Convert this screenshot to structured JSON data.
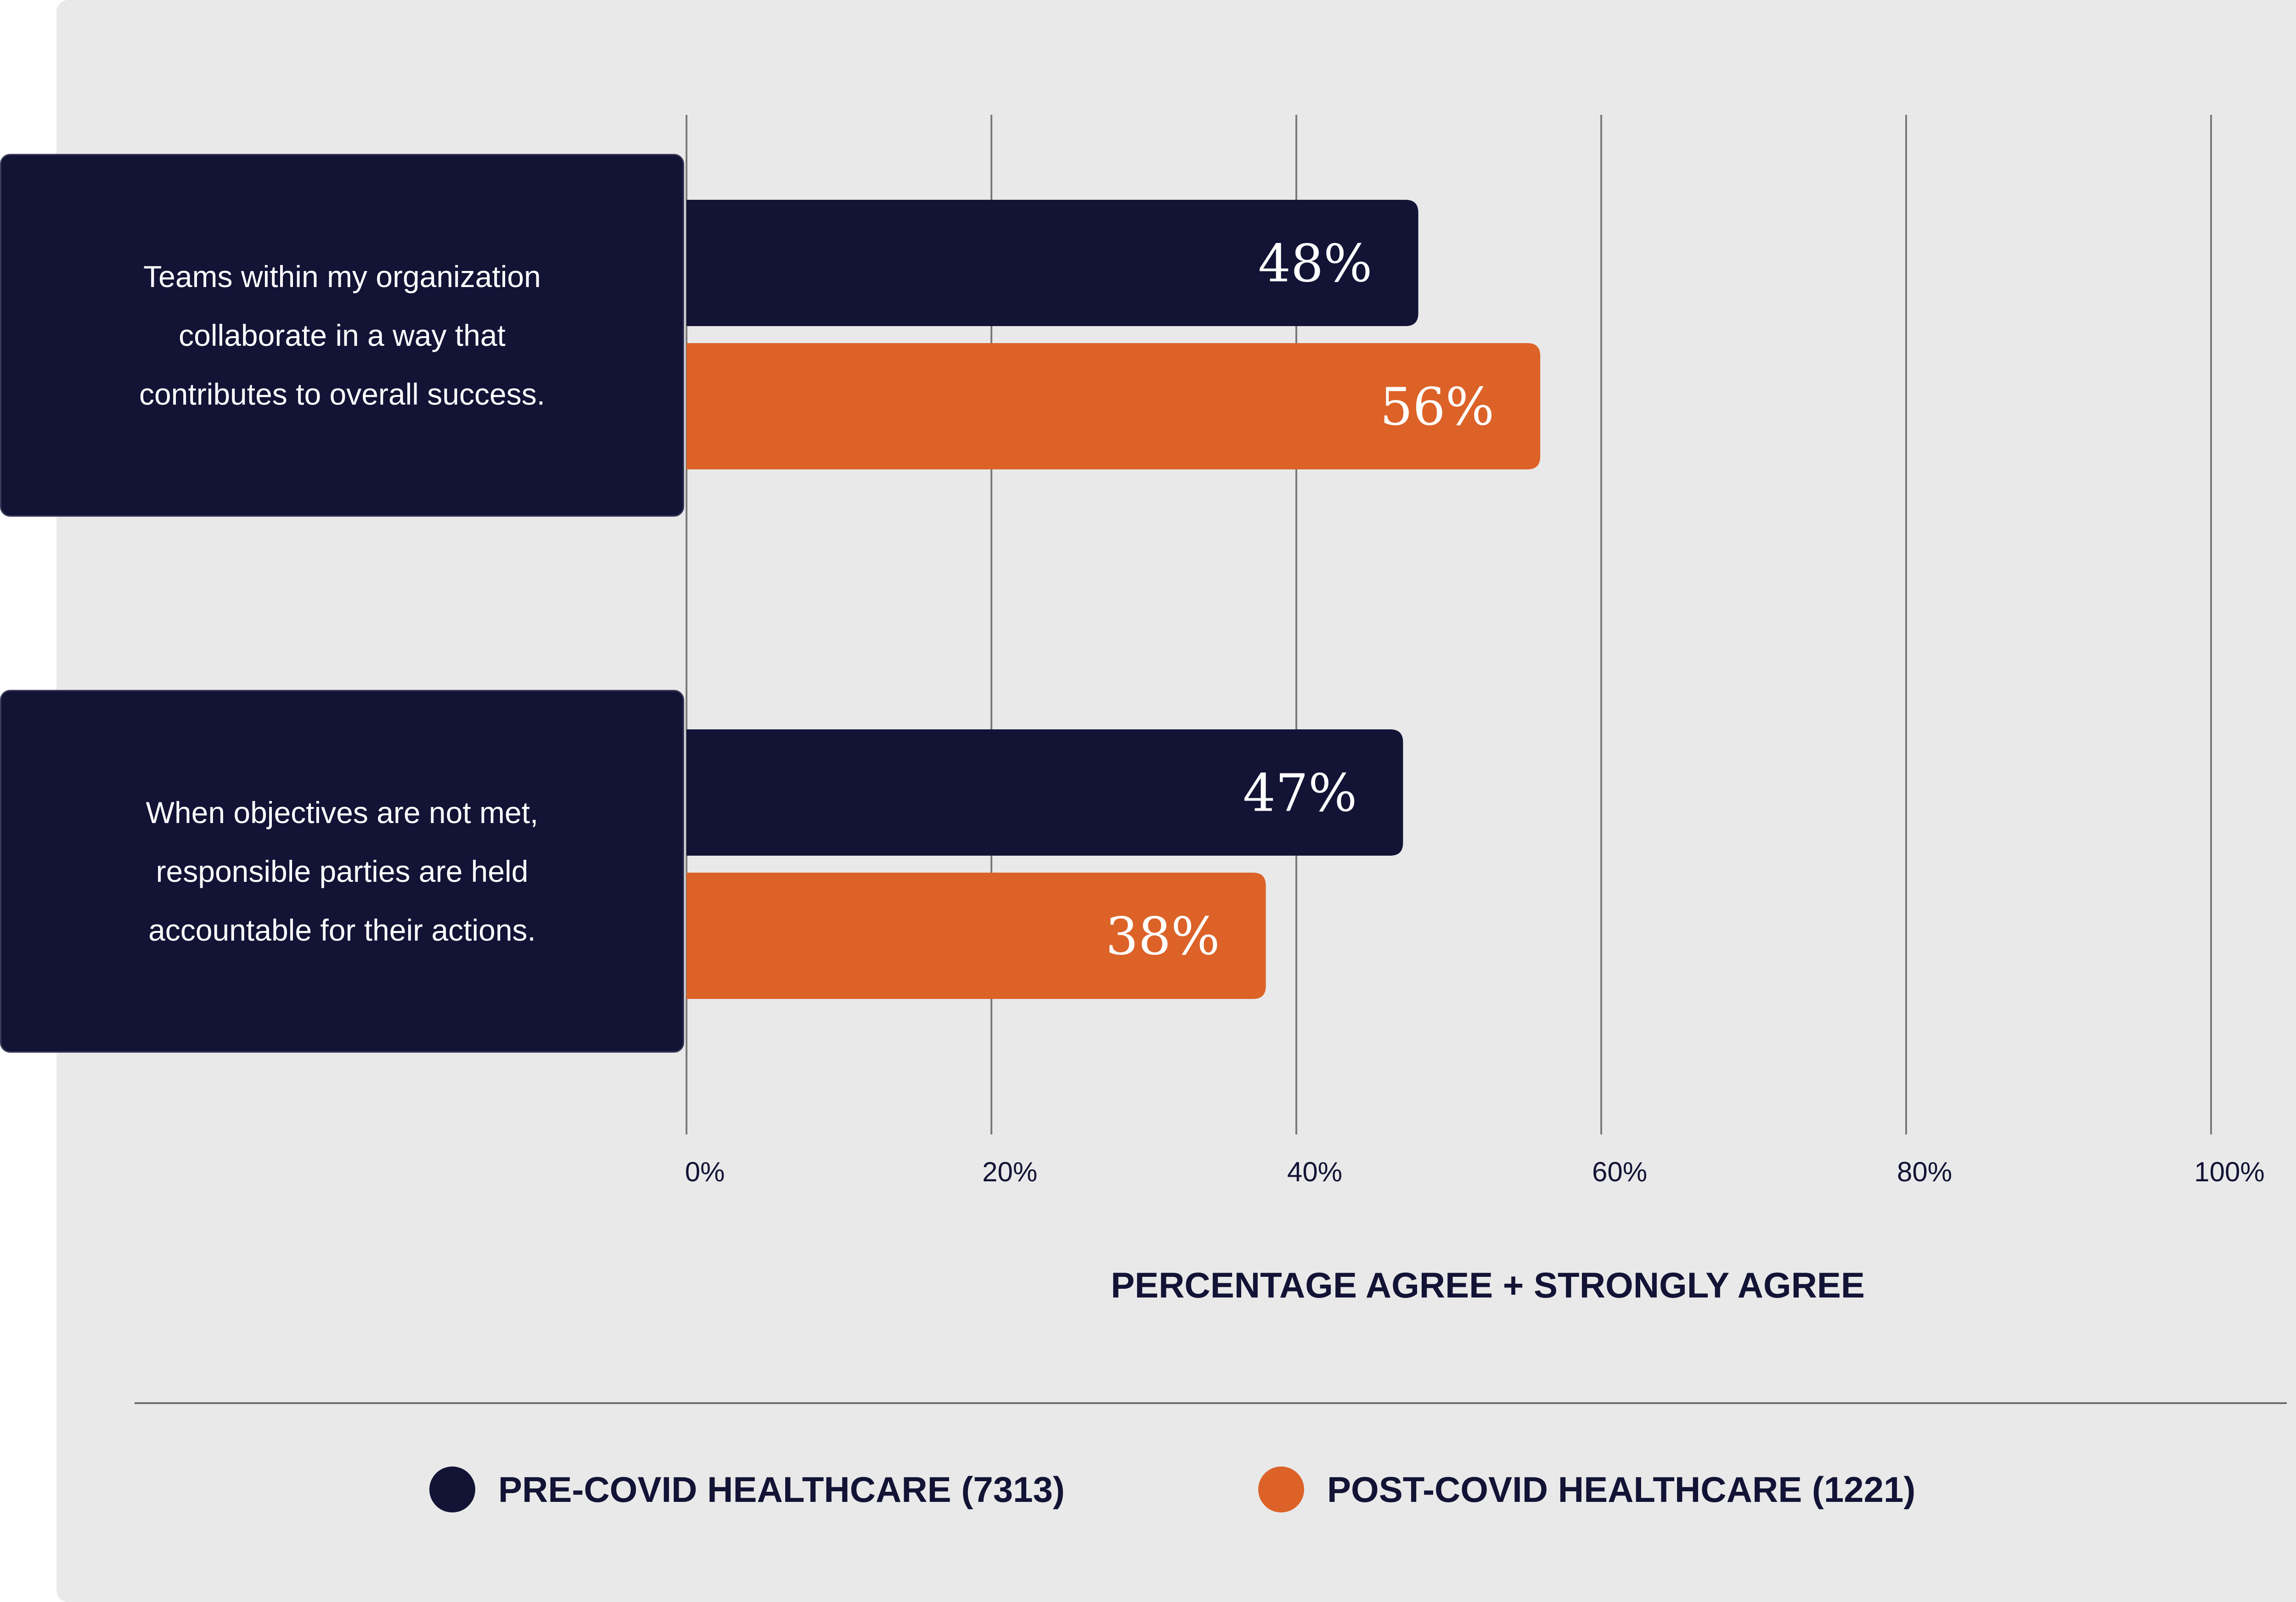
{
  "chart_data": {
    "type": "bar",
    "orientation": "horizontal",
    "categories": [
      "Teams within my organization collaborate in a way that contributes to overall success.",
      "When objectives are not met, responsible parties are held accountable for their actions."
    ],
    "category_lines": [
      [
        "Teams within my organization",
        "collaborate in a way that",
        "contributes to overall success."
      ],
      [
        "When objectives are not met,",
        "responsible parties are held",
        "accountable for their actions."
      ]
    ],
    "series": [
      {
        "name": "PRE-COVID HEALTHCARE (7313)",
        "color": "#121335",
        "values": [
          48,
          47
        ],
        "labels": [
          "48%",
          "47%"
        ]
      },
      {
        "name": "POST-COVID HEALTHCARE (1221)",
        "color": "#dc6228",
        "values": [
          56,
          38
        ],
        "labels": [
          "56%",
          "38%"
        ]
      }
    ],
    "xlim": [
      0,
      100
    ],
    "xticks": [
      "0%",
      "20%",
      "40%",
      "60%",
      "80%",
      "100%"
    ],
    "xlabel": "PERCENTAGE AGREE + STRONGLY AGREE",
    "grid": true,
    "legend_position": "bottom"
  }
}
